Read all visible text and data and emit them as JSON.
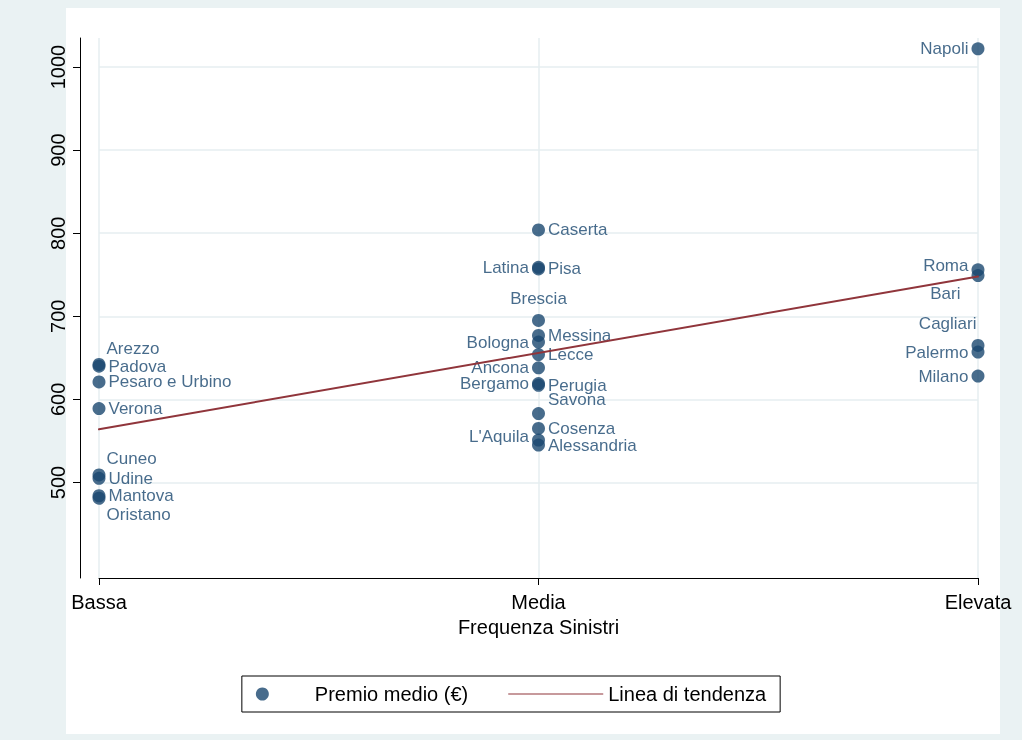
{
  "chart_data": {
    "type": "scatter",
    "xlabel": "Frequenza Sinistri",
    "categories": [
      "Bassa",
      "Media",
      "Elevata"
    ],
    "ylim": [
      385,
      1035
    ],
    "yticks": [
      500,
      600,
      700,
      800,
      900,
      1000
    ],
    "grid": true,
    "legend": "bottom",
    "series": [
      {
        "name": "Premio medio (€)",
        "type": "scatter",
        "color": "#1a476f",
        "marker": "circle",
        "x": [
          "Bassa",
          "Bassa",
          "Bassa",
          "Bassa",
          "Bassa",
          "Bassa",
          "Bassa",
          "Bassa",
          "Media",
          "Media",
          "Media",
          "Media",
          "Media",
          "Media",
          "Media",
          "Media",
          "Media",
          "Media",
          "Media",
          "Media",
          "Media",
          "Media",
          "Elevata",
          "Elevata",
          "Elevata",
          "Elevata",
          "Elevata",
          "Elevata"
        ],
        "values": [
          642,
          640,
          621,
          589,
          509,
          505,
          484,
          481,
          804,
          759,
          757,
          695,
          677,
          669,
          654,
          638,
          619,
          617,
          583,
          565,
          551,
          545,
          1022,
          756,
          749,
          665,
          657,
          628
        ],
        "value_labels": [
          "Arezzo",
          "Padova",
          "Pesaro e Urbino",
          "Verona",
          "Cuneo",
          "Udine",
          "Mantova",
          "Oristano",
          "Caserta",
          "Latina",
          "Pisa",
          "Brescia",
          "Messina",
          "Bologna",
          "Lecce",
          "Ancona",
          "Bergamo",
          "Perugia",
          "Savona",
          "Cosenza",
          "L'Aquila",
          "Alessandria",
          "Napoli",
          "Roma",
          "Bari",
          "Cagliari",
          "Palermo",
          "Milano"
        ]
      },
      {
        "name": "Linea di tendenza",
        "type": "line",
        "color": "#90353b",
        "marker": "none",
        "line_style": "solid",
        "x": [
          "Bassa",
          "Elevata"
        ],
        "values": [
          564,
          748
        ]
      }
    ]
  }
}
